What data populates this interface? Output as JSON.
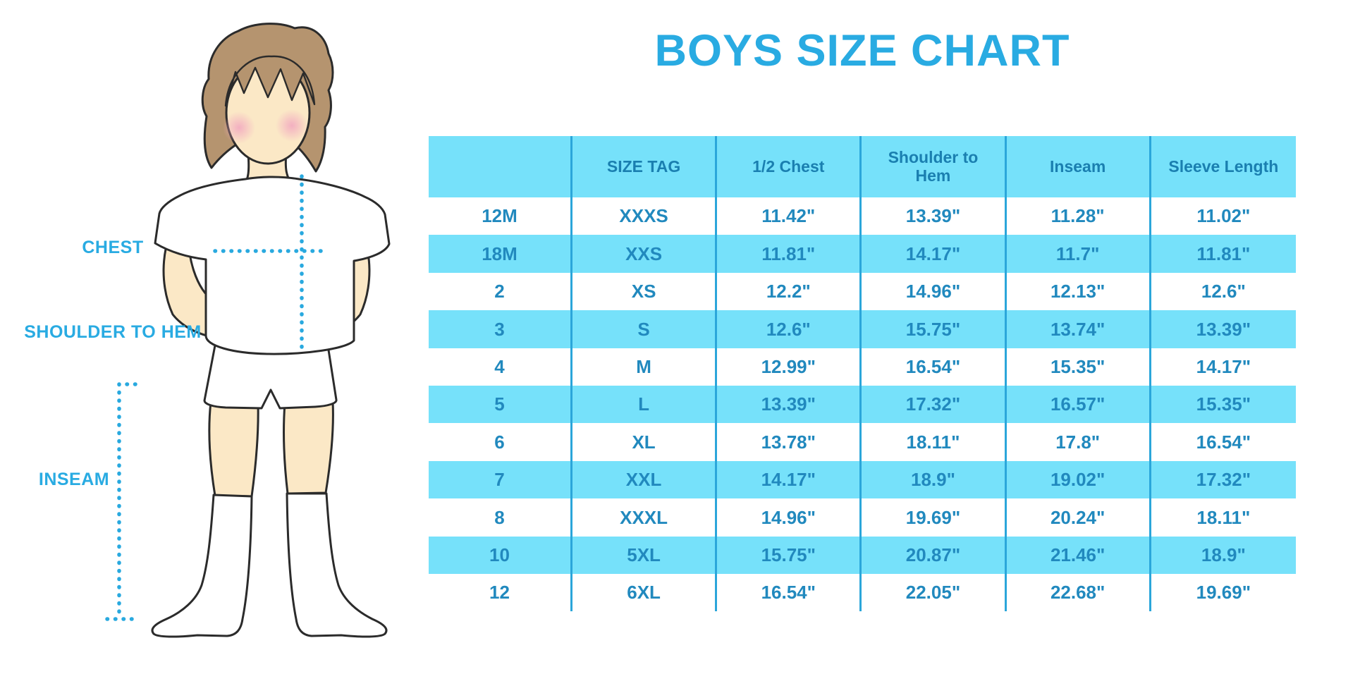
{
  "title": "BOYS SIZE CHART",
  "diagram": {
    "chest_label": "CHEST",
    "shoulder_to_hem_label": "SHOULDER TO HEM",
    "inseam_label": "INSEAM"
  },
  "chart_data": {
    "type": "table",
    "title": "BOYS SIZE CHART",
    "columns": [
      "",
      "SIZE TAG",
      "1/2 Chest",
      "Shoulder to Hem",
      "Inseam",
      "Sleeve Length"
    ],
    "rows": [
      [
        "12M",
        "XXXS",
        "11.42\"",
        "13.39\"",
        "11.28\"",
        "11.02\""
      ],
      [
        "18M",
        "XXS",
        "11.81\"",
        "14.17\"",
        "11.7\"",
        "11.81\""
      ],
      [
        "2",
        "XS",
        "12.2\"",
        "14.96\"",
        "12.13\"",
        "12.6\""
      ],
      [
        "3",
        "S",
        "12.6\"",
        "15.75\"",
        "13.74\"",
        "13.39\""
      ],
      [
        "4",
        "M",
        "12.99\"",
        "16.54\"",
        "15.35\"",
        "14.17\""
      ],
      [
        "5",
        "L",
        "13.39\"",
        "17.32\"",
        "16.57\"",
        "15.35\""
      ],
      [
        "6",
        "XL",
        "13.78\"",
        "18.11\"",
        "17.8\"",
        "16.54\""
      ],
      [
        "7",
        "XXL",
        "14.17\"",
        "18.9\"",
        "19.02\"",
        "17.32\""
      ],
      [
        "8",
        "XXXL",
        "14.96\"",
        "19.69\"",
        "20.24\"",
        "18.11\""
      ],
      [
        "10",
        "5XL",
        "15.75\"",
        "20.87\"",
        "21.46\"",
        "18.9\""
      ],
      [
        "12",
        "6XL",
        "16.54\"",
        "22.05\"",
        "22.68\"",
        "19.69\""
      ]
    ],
    "row_striping": "alternating white / cyan starting with white",
    "legend_position": "none",
    "grid": "vertical column dividers only"
  },
  "colors": {
    "accent": "#29ABE2",
    "band": "#76E1FA",
    "divider": "#2BA6DA",
    "text": "#2189BE",
    "header_text": "#1A7FB0",
    "dotted": "#29A9DF",
    "skin": "#FBE8C6",
    "hair": "#B5946F",
    "cheek": "#F2A9C0",
    "outline": "#2B2B2B"
  }
}
